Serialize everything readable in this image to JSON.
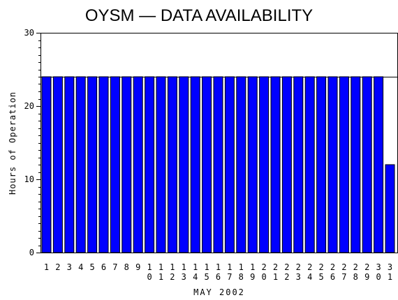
{
  "chart_data": {
    "type": "bar",
    "title": "OYSM — DATA AVAILABILITY",
    "xlabel": "MAY 2002",
    "ylabel": "Hours of Operation",
    "ylim": [
      0,
      30
    ],
    "yticks": [
      "0",
      "10",
      "20",
      "30"
    ],
    "reference_line": 24,
    "bar_color": "#0000ff",
    "categories": [
      "1",
      "2",
      "3",
      "4",
      "5",
      "6",
      "7",
      "8",
      "9",
      "10",
      "11",
      "12",
      "13",
      "14",
      "15",
      "16",
      "17",
      "18",
      "19",
      "20",
      "21",
      "22",
      "23",
      "24",
      "25",
      "26",
      "27",
      "28",
      "29",
      "30",
      "31"
    ],
    "values": [
      24,
      24,
      24,
      24,
      24,
      24,
      24,
      24,
      24,
      24,
      24,
      24,
      24,
      24,
      24,
      24,
      24,
      24,
      24,
      24,
      24,
      24,
      24,
      24,
      24,
      24,
      24,
      24,
      24,
      24,
      12
    ]
  }
}
